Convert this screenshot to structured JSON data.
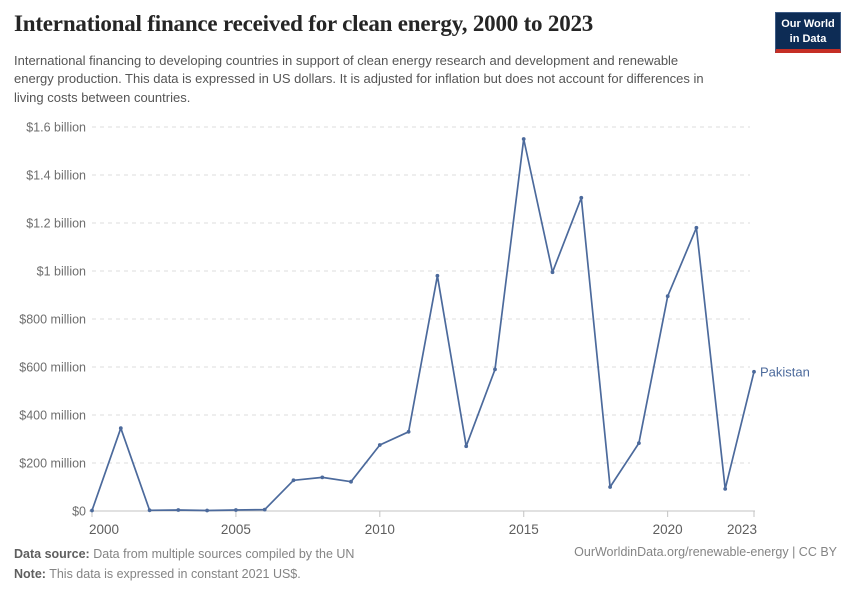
{
  "header": {
    "title": "International finance received for clean energy, 2000 to 2023",
    "subtitle": "International financing to developing countries in support of clean energy research and development and renewable energy production. This data is expressed in US dollars. It is adjusted for inflation but does not account for differences in living costs between countries.",
    "logo": {
      "line1": "Our World",
      "line2": "in Data"
    }
  },
  "colors": {
    "line": "#4c6a9c",
    "logo_navy": "#0d2c55",
    "logo_red": "#c52f25",
    "gridline": "#dcdcdc",
    "axis": "#c3c3c3"
  },
  "chart_data": {
    "type": "line",
    "title": "International finance received for clean energy, 2000 to 2023",
    "xlabel": "",
    "ylabel": "",
    "values_unit": "million constant 2021 US$",
    "x": [
      2000,
      2001,
      2002,
      2003,
      2004,
      2005,
      2006,
      2007,
      2008,
      2009,
      2010,
      2011,
      2012,
      2013,
      2014,
      2015,
      2016,
      2017,
      2018,
      2019,
      2020,
      2021,
      2022,
      2023
    ],
    "series": [
      {
        "name": "Pakistan",
        "color": "#4c6a9c",
        "values": [
          2,
          345,
          3,
          4,
          2,
          4,
          6,
          128,
          140,
          122,
          275,
          330,
          980,
          270,
          590,
          1550,
          995,
          1305,
          100,
          283,
          895,
          1180,
          92,
          580
        ]
      }
    ],
    "ylim": [
      0,
      1600
    ],
    "grid": "horizontal-dashed",
    "legend_position": "end-of-line",
    "y_ticks": [
      {
        "value": 0,
        "label": "$0"
      },
      {
        "value": 200,
        "label": "$200 million"
      },
      {
        "value": 400,
        "label": "$400 million"
      },
      {
        "value": 600,
        "label": "$600 million"
      },
      {
        "value": 800,
        "label": "$800 million"
      },
      {
        "value": 1000,
        "label": "$1 billion"
      },
      {
        "value": 1200,
        "label": "$1.2 billion"
      },
      {
        "value": 1400,
        "label": "$1.4 billion"
      },
      {
        "value": 1600,
        "label": "$1.6 billion"
      }
    ],
    "x_ticks": [
      {
        "value": 2000,
        "label": "2000"
      },
      {
        "value": 2005,
        "label": "2005"
      },
      {
        "value": 2010,
        "label": "2010"
      },
      {
        "value": 2015,
        "label": "2015"
      },
      {
        "value": 2020,
        "label": "2020"
      },
      {
        "value": 2023,
        "label": "2023"
      }
    ]
  },
  "footer": {
    "source_label": "Data source:",
    "source_text": "Data from multiple sources compiled by the UN",
    "note_label": "Note:",
    "note_text": "This data is expressed in constant 2021 US$.",
    "link": "OurWorldinData.org/renewable-energy | CC BY"
  }
}
